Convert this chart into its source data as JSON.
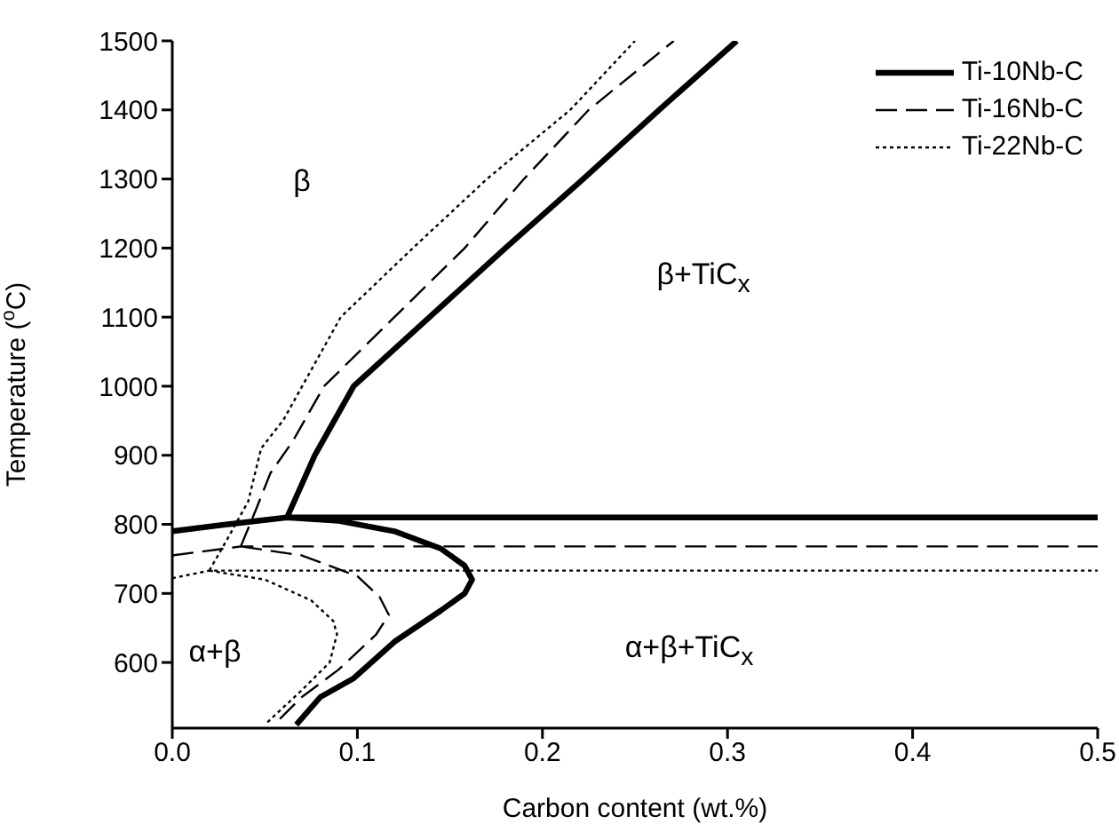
{
  "chart_data": {
    "type": "line",
    "xlabel": "Carbon content (wt.%)",
    "ylabel": "Temperature ($^{o}$C)",
    "xlim": [
      0,
      0.5
    ],
    "xticks": [
      {
        "value": 0,
        "label": "0.0"
      },
      0.1,
      0.2,
      0.3,
      0.4,
      0.5
    ],
    "ylim": [
      505,
      1500
    ],
    "yticks": [
      600,
      700,
      800,
      900,
      1000,
      1100,
      1200,
      1300,
      1400,
      1500
    ],
    "legend": "top right",
    "marker": "none",
    "series": [
      {
        "name": "Ti-10Nb-C",
        "color": "#000000",
        "line_style": "solid",
        "x": [
          0,
          0.03,
          0.062,
          0.5,
          null,
          0.062,
          0.077,
          0.098,
          0.139,
          0.18,
          0.222,
          0.263,
          0.305,
          null,
          0.062,
          0.09,
          0.12,
          0.145,
          0.158,
          0.162,
          0.158,
          0.145,
          0.12,
          0.098,
          0.08,
          0.067
        ],
        "values": [
          790,
          800,
          810,
          810,
          null,
          810,
          900,
          1000,
          1100,
          1200,
          1300,
          1400,
          1500,
          null,
          810,
          805,
          790,
          765,
          740,
          720,
          700,
          675,
          630,
          577,
          550,
          510
        ]
      },
      {
        "name": "Ti-16Nb-C",
        "color": "#000000",
        "line_style": "dashed",
        "x": [
          0,
          0.037,
          0.5,
          null,
          0.037,
          0.045,
          0.053,
          0.065,
          0.082,
          0.12,
          0.158,
          0.19,
          0.225,
          0.271,
          null,
          0.037,
          0.07,
          0.1,
          0.112,
          0.117,
          0.11,
          0.09,
          0.07,
          0.055
        ],
        "values": [
          755,
          768,
          768,
          null,
          768,
          820,
          874,
          920,
          1000,
          1100,
          1200,
          1300,
          1400,
          1500,
          null,
          768,
          755,
          725,
          695,
          669,
          640,
          590,
          550,
          510
        ]
      },
      {
        "name": "Ti-22Nb-C",
        "color": "#000000",
        "line_style": "dotted",
        "x": [
          0,
          0.02,
          0.5,
          null,
          0.02,
          0.03,
          0.041,
          0.048,
          0.06,
          0.091,
          0.13,
          0.17,
          0.215,
          0.25,
          null,
          0.02,
          0.05,
          0.075,
          0.087,
          0.089,
          0.085,
          0.07,
          0.05
        ],
        "values": [
          722,
          733,
          733,
          null,
          733,
          780,
          833,
          910,
          951,
          1100,
          1200,
          1300,
          1400,
          1500,
          null,
          733,
          720,
          690,
          660,
          641,
          600,
          560,
          510
        ]
      }
    ],
    "annotations": [
      "β",
      "β+TiC$_{x}$",
      "α+β",
      "α+β+TiC$_{x}$"
    ]
  }
}
